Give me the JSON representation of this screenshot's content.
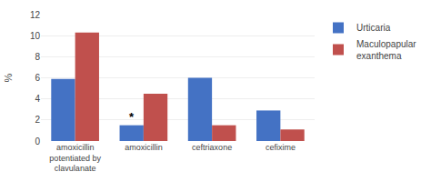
{
  "chart_data": {
    "type": "bar",
    "categories": [
      "amoxicillin\npotentiated by\nclavulanate",
      "amoxicillin",
      "ceftriaxone",
      "cefixime"
    ],
    "series": [
      {
        "name": "Urticaria",
        "color": "#4472c4",
        "values": [
          5.9,
          1.5,
          6.0,
          2.9
        ]
      },
      {
        "name": "Maculopapular\nexanthema",
        "color": "#c0504d",
        "values": [
          10.3,
          4.5,
          1.5,
          1.1
        ]
      }
    ],
    "ylabel": "%",
    "ylim": [
      0,
      12
    ],
    "yticks": [
      0,
      2,
      4,
      6,
      8,
      10,
      12
    ],
    "grid": true,
    "legend": "right",
    "annotations": [
      {
        "text": "*",
        "category": "amoxicillin",
        "series": "Urticaria"
      }
    ]
  }
}
